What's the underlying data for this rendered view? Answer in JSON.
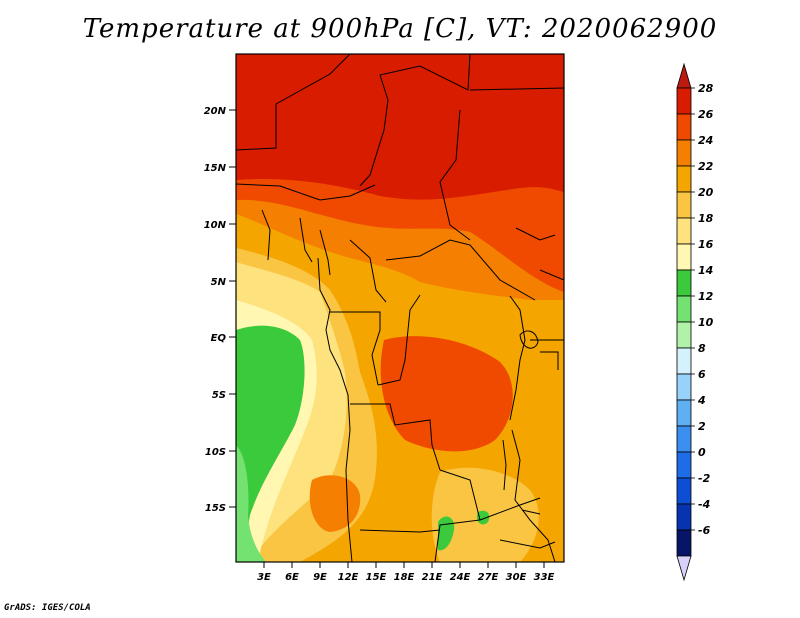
{
  "title": "Temperature at 900hPa [C], VT: 2020062900",
  "credit": "GrADS: IGES/COLA",
  "map": {
    "lon_labels": [
      "3E",
      "6E",
      "9E",
      "12E",
      "15E",
      "18E",
      "21E",
      "24E",
      "27E",
      "30E",
      "33E"
    ],
    "lat_labels": [
      "20N",
      "15N",
      "10N",
      "5N",
      "EQ",
      "5S",
      "10S",
      "15S"
    ]
  },
  "colorbar": {
    "labels": [
      "28",
      "26",
      "24",
      "22",
      "20",
      "18",
      "16",
      "14",
      "12",
      "10",
      "8",
      "6",
      "4",
      "2",
      "0",
      "-2",
      "-4",
      "-6"
    ],
    "colors": [
      "#d81c00",
      "#f04a00",
      "#f57f00",
      "#f5a500",
      "#f9c542",
      "#fde27e",
      "#fff7b2",
      "#3bca3b",
      "#74e270",
      "#aff2a8",
      "#d4f2fb",
      "#96d2fa",
      "#5fb0f2",
      "#3a8ff0",
      "#1d6ce8",
      "#0c4fd4",
      "#0634b0",
      "#081468"
    ],
    "top_arrow_color": "#bb1c0f",
    "bottom_arrow_color": "#d8d2fa"
  },
  "palette": {
    "t28": "#d81c00",
    "t26": "#f04a00",
    "t24": "#f57f00",
    "t22": "#f5a500",
    "t20": "#f9c542",
    "t18": "#fde27e",
    "t16": "#fff7b2",
    "t14": "#3bca3b",
    "t12": "#74e270"
  }
}
